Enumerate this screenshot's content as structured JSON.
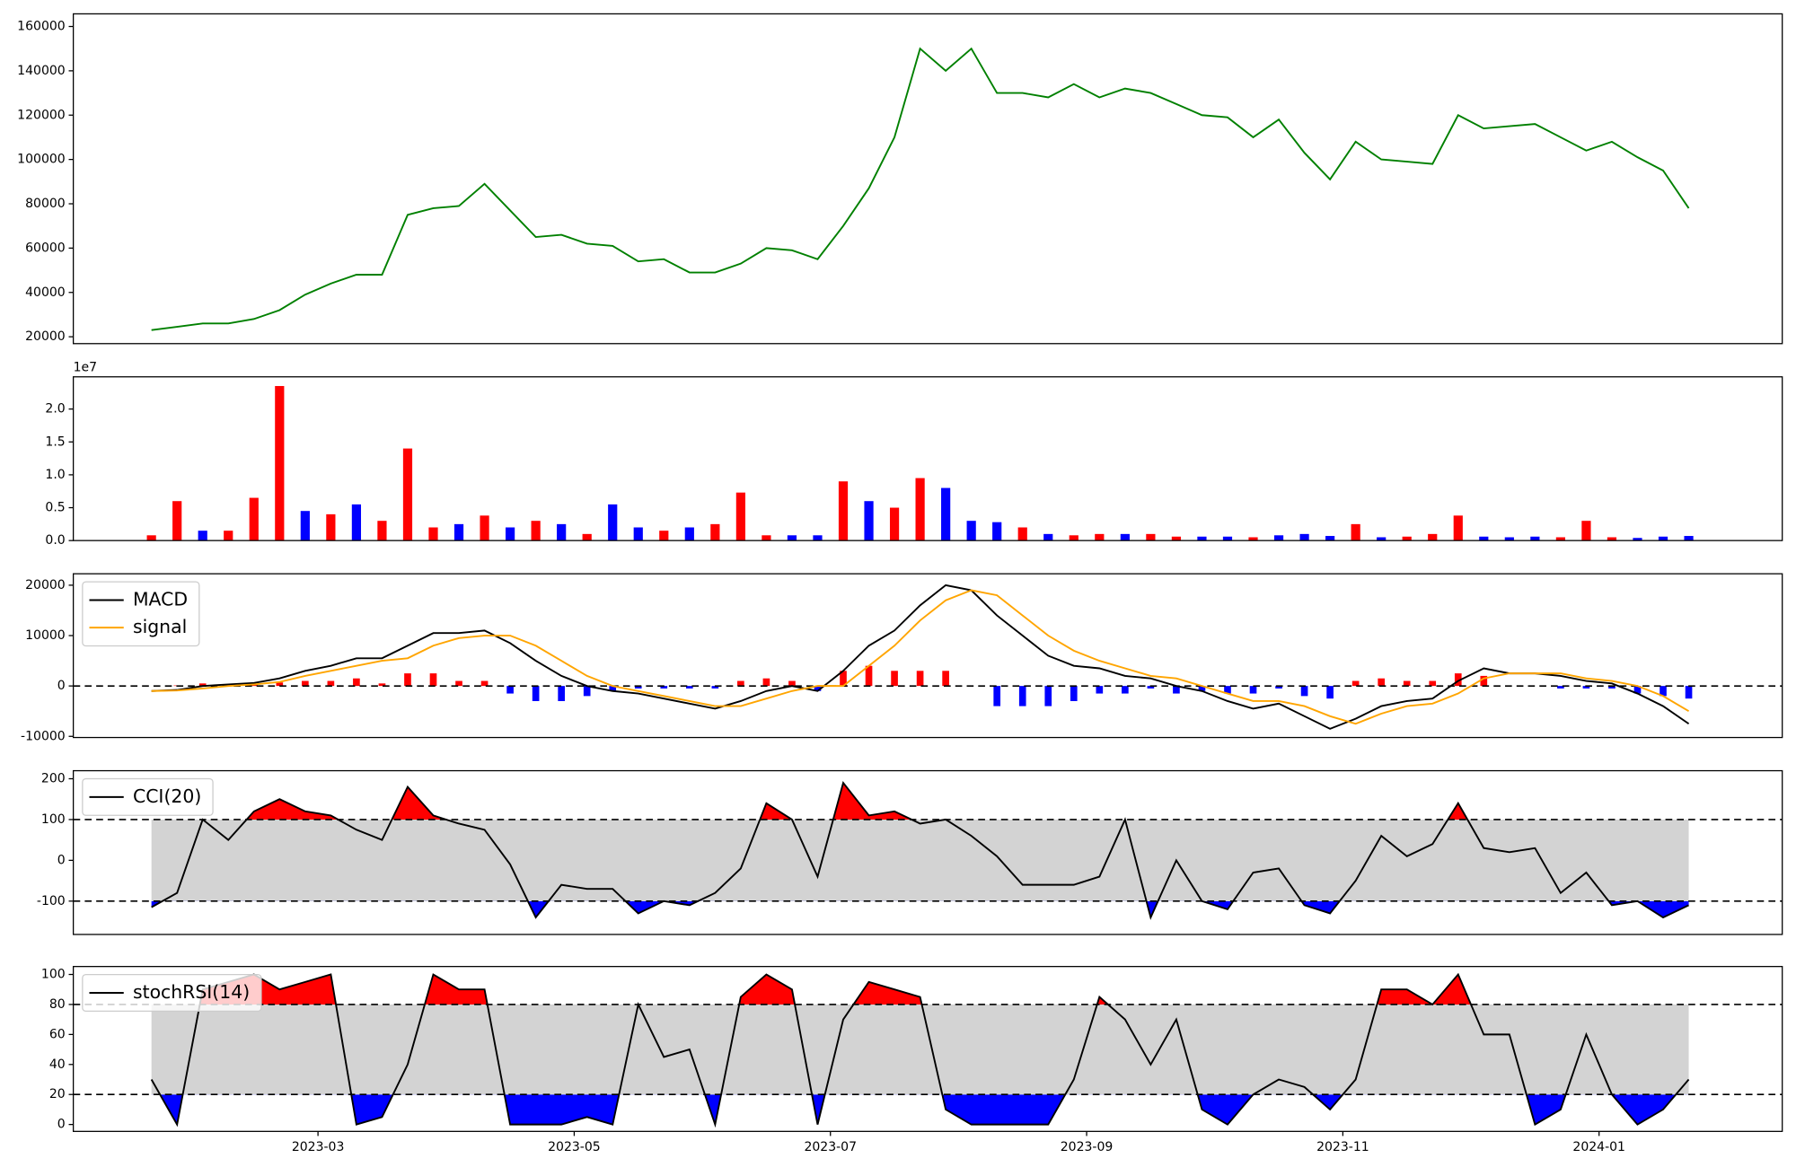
{
  "chart_data": [
    {
      "type": "line",
      "ylim": [
        16900,
        165700
      ],
      "yticks": [
        20000,
        40000,
        60000,
        80000,
        100000,
        120000,
        140000,
        160000
      ],
      "series": [
        {
          "color": "green",
          "values": [
            23000,
            24500,
            26000,
            26000,
            28000,
            32000,
            39000,
            44000,
            48000,
            48000,
            75000,
            78000,
            79000,
            89000,
            77000,
            65000,
            66000,
            62000,
            61000,
            54000,
            55000,
            49000,
            49000,
            53000,
            60000,
            59000,
            55000,
            70000,
            87000,
            110000,
            150000,
            140000,
            150000,
            130000,
            130000,
            128000,
            134000,
            128000,
            132000,
            130000,
            125000,
            120000,
            119000,
            110000,
            118000,
            103000,
            91000,
            108000,
            100000,
            99000,
            98000,
            120000,
            114000,
            115000,
            116000,
            110000,
            104000,
            108000,
            101000,
            95000,
            78000
          ]
        }
      ]
    },
    {
      "type": "bar",
      "offset_label": "1e7",
      "ylim": [
        0,
        24900000
      ],
      "yticks": [
        {
          "value": 0,
          "label": "0.0"
        },
        {
          "value": 5000000,
          "label": "0.5"
        },
        {
          "value": 10000000,
          "label": "1.0"
        },
        {
          "value": 15000000,
          "label": "1.5"
        },
        {
          "value": 20000000,
          "label": "2.0"
        }
      ],
      "values": [
        800000,
        6000000,
        1500000,
        1500000,
        6500000,
        23500000,
        4500000,
        4000000,
        5500000,
        3000000,
        14000000,
        2000000,
        2500000,
        3800000,
        2000000,
        3000000,
        2500000,
        1000000,
        5500000,
        2000000,
        1500000,
        2000000,
        2500000,
        7300000,
        800000,
        800000,
        800000,
        9000000,
        6000000,
        5000000,
        9500000,
        8000000,
        3000000,
        2800000,
        2000000,
        1000000,
        800000,
        1000000,
        1000000,
        1000000,
        600000,
        600000,
        600000,
        500000,
        800000,
        1000000,
        700000,
        2500000,
        500000,
        600000,
        1000000,
        3800000,
        600000,
        500000,
        600000,
        500000,
        3000000,
        500000,
        400000,
        600000,
        700000
      ],
      "bar_colors": [
        "red",
        "red",
        "blue",
        "red",
        "red",
        "red",
        "blue",
        "red",
        "blue",
        "red",
        "red",
        "red",
        "blue",
        "red",
        "blue",
        "red",
        "blue",
        "red",
        "blue",
        "blue",
        "red",
        "blue",
        "red",
        "red",
        "red",
        "blue",
        "blue",
        "red",
        "blue",
        "red",
        "red",
        "blue",
        "blue",
        "blue",
        "red",
        "blue",
        "red",
        "red",
        "blue",
        "red",
        "red",
        "blue",
        "blue",
        "red",
        "blue",
        "blue",
        "blue",
        "red",
        "blue",
        "red",
        "red",
        "red",
        "blue",
        "blue",
        "blue",
        "red",
        "red",
        "red",
        "blue",
        "blue",
        "blue"
      ]
    },
    {
      "type": "macd",
      "ylim": [
        -10230,
        22270
      ],
      "yticks": [
        -10000,
        0,
        10000,
        20000
      ],
      "hlines": [
        0
      ],
      "legend": "upper left",
      "histogram": {
        "colors": [
          "red",
          "blue"
        ],
        "values": [
          0,
          100,
          500,
          300,
          300,
          700,
          1000,
          1000,
          1500,
          500,
          2500,
          2500,
          1000,
          1000,
          -1500,
          -3000,
          -3000,
          -2000,
          -1000,
          -500,
          -500,
          -500,
          -500,
          1000,
          1500,
          1000,
          -1000,
          3000,
          4000,
          3000,
          3000,
          3000,
          0,
          -4000,
          -4000,
          -4000,
          -3000,
          -1500,
          -1500,
          -500,
          -1500,
          -1000,
          -1500,
          -1500,
          -500,
          -2000,
          -2500,
          1000,
          1500,
          1000,
          1000,
          2500,
          2000,
          0,
          0,
          -500,
          -500,
          -500,
          -1500,
          -2000,
          -2500
        ]
      },
      "series": [
        {
          "name": "MACD",
          "color": "black",
          "values": [
            -1000,
            -800,
            0,
            300,
            600,
            1500,
            3000,
            4000,
            5500,
            5500,
            8000,
            10500,
            10500,
            11000,
            8500,
            5000,
            2000,
            0,
            -1000,
            -1500,
            -2500,
            -3500,
            -4500,
            -3000,
            -1000,
            0,
            -1000,
            3000,
            8000,
            11000,
            16000,
            20000,
            19000,
            14000,
            10000,
            6000,
            4000,
            3500,
            2000,
            1500,
            0,
            -1000,
            -3000,
            -4500,
            -3500,
            -6000,
            -8500,
            -6500,
            -4000,
            -3000,
            -2500,
            1000,
            3500,
            2500,
            2500,
            2000,
            1000,
            500,
            -1500,
            -4000,
            -7500
          ]
        },
        {
          "name": "signal",
          "color": "orange",
          "values": [
            -1000,
            -900,
            -500,
            0,
            300,
            800,
            2000,
            3000,
            4000,
            5000,
            5500,
            8000,
            9500,
            10000,
            10000,
            8000,
            5000,
            2000,
            0,
            -1000,
            -2000,
            -3000,
            -4000,
            -4000,
            -2500,
            -1000,
            0,
            0,
            4000,
            8000,
            13000,
            17000,
            19000,
            18000,
            14000,
            10000,
            7000,
            5000,
            3500,
            2000,
            1500,
            0,
            -1500,
            -3000,
            -3000,
            -4000,
            -6000,
            -7500,
            -5500,
            -4000,
            -3500,
            -1500,
            1500,
            2500,
            2500,
            2500,
            1500,
            1000,
            0,
            -2000,
            -5000
          ]
        }
      ]
    },
    {
      "type": "oscillator",
      "ylim": [
        -181.7,
        219.7
      ],
      "yticks": [
        -100,
        0,
        100,
        200
      ],
      "thresholds": [
        100,
        -100
      ],
      "legend": "upper left",
      "above_color": "red",
      "below_color": "blue",
      "band_color": "lightgray",
      "series": [
        {
          "name": "CCI(20)",
          "color": "black",
          "values": [
            -115,
            -80,
            100,
            50,
            120,
            150,
            120,
            110,
            75,
            50,
            180,
            110,
            90,
            75,
            -10,
            -140,
            -60,
            -70,
            -70,
            -130,
            -100,
            -110,
            -80,
            -20,
            140,
            100,
            -40,
            190,
            110,
            120,
            90,
            100,
            60,
            10,
            -60,
            -60,
            -60,
            -40,
            100,
            -140,
            0,
            -100,
            -120,
            -30,
            -20,
            -110,
            -130,
            -50,
            60,
            10,
            40,
            140,
            30,
            20,
            30,
            -80,
            -30,
            -110,
            -100,
            -140,
            -110
          ]
        }
      ]
    },
    {
      "type": "oscillator",
      "ylim": [
        -4.6,
        105.3
      ],
      "yticks": [
        0,
        20,
        40,
        60,
        80,
        100
      ],
      "thresholds": [
        80,
        20
      ],
      "legend": "upper left",
      "above_color": "red",
      "below_color": "blue",
      "band_color": "lightgray",
      "x": [
        0.7,
        0.9,
        1.1,
        1.3,
        1.5,
        1.7,
        1.9,
        2.1,
        2.3,
        2.5,
        2.7,
        2.9,
        3.1,
        3.3,
        3.5,
        3.7,
        3.9,
        4.1,
        4.3,
        4.5,
        4.7,
        4.9,
        5.1,
        5.3,
        5.5,
        5.7,
        5.9,
        6.1,
        6.3,
        6.5,
        6.7,
        6.9,
        7.1,
        7.3,
        7.5,
        7.7,
        7.9,
        8.1,
        8.3,
        8.5,
        8.7,
        8.9,
        9.1,
        9.3,
        9.5,
        9.7,
        9.9,
        10.1,
        10.3,
        10.5,
        10.7,
        10.9,
        11.1,
        11.3,
        11.5,
        11.7,
        11.9,
        12.1,
        12.3,
        12.5,
        12.7
      ],
      "xlim": [
        0.09,
        13.43
      ],
      "xticks": [
        {
          "value": 2,
          "label": "2023-03"
        },
        {
          "value": 4,
          "label": "2023-05"
        },
        {
          "value": 6,
          "label": "2023-07"
        },
        {
          "value": 8,
          "label": "2023-09"
        },
        {
          "value": 10,
          "label": "2023-11"
        },
        {
          "value": 12,
          "label": "2024-01"
        }
      ],
      "series": [
        {
          "name": "stochRSI(14)",
          "color": "black",
          "values": [
            30,
            0,
            90,
            95,
            100,
            90,
            95,
            100,
            0,
            5,
            40,
            100,
            90,
            90,
            0,
            0,
            0,
            5,
            0,
            80,
            45,
            50,
            0,
            85,
            100,
            90,
            0,
            70,
            95,
            90,
            85,
            10,
            0,
            0,
            0,
            0,
            30,
            85,
            70,
            40,
            70,
            10,
            0,
            20,
            30,
            25,
            10,
            30,
            90,
            90,
            80,
            100,
            60,
            60,
            0,
            10,
            60,
            20,
            0,
            10,
            30
          ]
        }
      ]
    }
  ]
}
